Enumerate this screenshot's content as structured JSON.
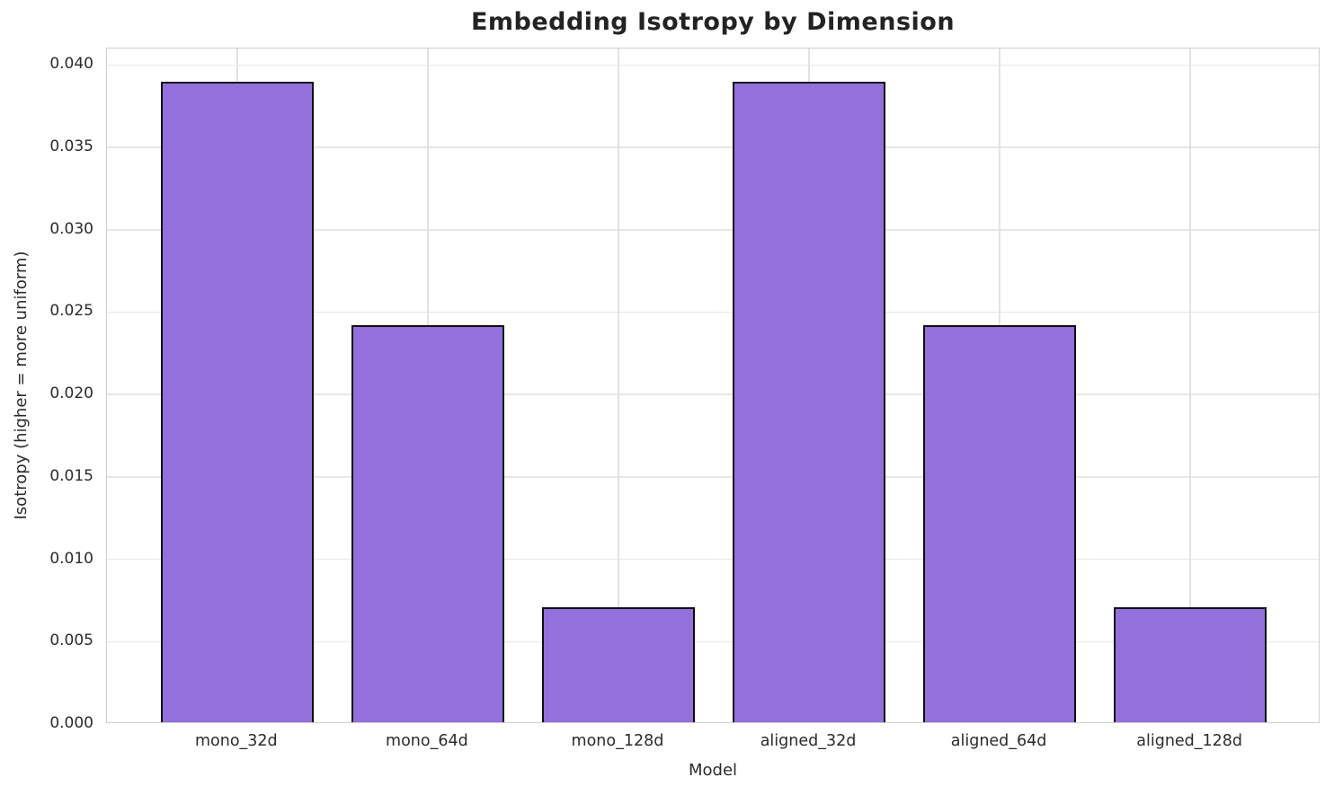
{
  "chart_data": {
    "type": "bar",
    "title": "Embedding Isotropy by Dimension",
    "xlabel": "Model",
    "ylabel": "Isotropy (higher = more uniform)",
    "categories": [
      "mono_32d",
      "mono_64d",
      "mono_128d",
      "aligned_32d",
      "aligned_64d",
      "aligned_128d"
    ],
    "values": [
      0.039,
      0.0242,
      0.0071,
      0.039,
      0.0242,
      0.0071
    ],
    "ylim": [
      0,
      0.041
    ],
    "yticks": [
      0,
      0.005,
      0.01,
      0.015,
      0.02,
      0.025,
      0.03,
      0.035,
      0.04
    ],
    "ytick_labels": [
      "0.000",
      "0.005",
      "0.010",
      "0.015",
      "0.020",
      "0.025",
      "0.030",
      "0.035",
      "0.040"
    ],
    "grid": true,
    "legend": "none",
    "bar_color": "#9370DB",
    "bar_edge_color": "#0d0d0d",
    "grid_color": "#e7e7e7",
    "spine_color": "#cfcfcf",
    "text_color": "#2b2b2b"
  }
}
